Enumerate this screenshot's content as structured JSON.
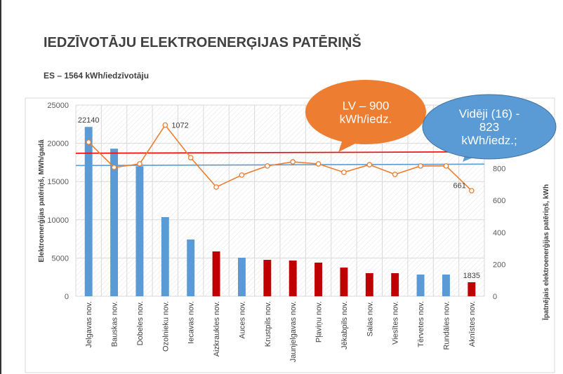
{
  "title": "IEDZĪVOTĀJU ELEKTROENERĢIJAS PATĒRIŅŠ",
  "subtitle": "ES – 1564 kWh/iedzīvotāju",
  "chart_data": {
    "type": "bar+line",
    "categories": [
      "Jelgavas nov.",
      "Bauskas nov.",
      "Dobeles nov.",
      "Ozolnieku nov.",
      "Iecavas nov.",
      "Aizkraukles nov.",
      "Auces nov.",
      "Krustpils nov.",
      "Jaunjelgavas nov.",
      "Pļaviņu nov.",
      "Jēkabpils nov.",
      "Salas nov.",
      "Viesītes nov.",
      "Tērvetes nov.",
      "Rundāles nov.",
      "Aknīstes nov."
    ],
    "bar_values": [
      22140,
      19300,
      17000,
      10350,
      7420,
      5860,
      5040,
      4760,
      4670,
      4400,
      3750,
      3020,
      3020,
      2840,
      2840,
      1835
    ],
    "bar_colors": [
      "#5b9bd5",
      "#5b9bd5",
      "#5b9bd5",
      "#5b9bd5",
      "#5b9bd5",
      "#c00000",
      "#5b9bd5",
      "#c00000",
      "#c00000",
      "#c00000",
      "#c00000",
      "#c00000",
      "#c00000",
      "#5b9bd5",
      "#5b9bd5",
      "#c00000"
    ],
    "bar_labels": {
      "0": "22140",
      "15": "1835"
    },
    "line_values": [
      965,
      807,
      829,
      1072,
      868,
      684,
      759,
      816,
      842,
      829,
      776,
      824,
      763,
      816,
      816,
      661
    ],
    "line_labels": {
      "3": "1072",
      "15": "661"
    },
    "line_color": "#ed7d31",
    "ylabel": "Elektroenerģijas patēriņš, MWh/gadā",
    "y2label": "Īpatnējais elektroenerģijas patēriņš, kWh",
    "ylim": [
      0,
      25000
    ],
    "yticks": [
      "0",
      "5000",
      "10000",
      "15000",
      "20000",
      "25000"
    ],
    "y2lim": [
      0,
      1200
    ],
    "y2ticks": [
      "0",
      "200",
      "400",
      "600",
      "800"
    ],
    "reference_lines": [
      {
        "value": 900,
        "color": "#ff0000"
      },
      {
        "value": 823,
        "color": "#5b9bd5"
      }
    ],
    "callouts": [
      {
        "text": [
          "LV – 900",
          "kWh/iedz."
        ],
        "color": "#ed7d31"
      },
      {
        "text": [
          "Vidēji (16) -",
          "823",
          "kWh/iedz.;"
        ],
        "color": "#5b9bd5"
      }
    ],
    "grid": true
  }
}
